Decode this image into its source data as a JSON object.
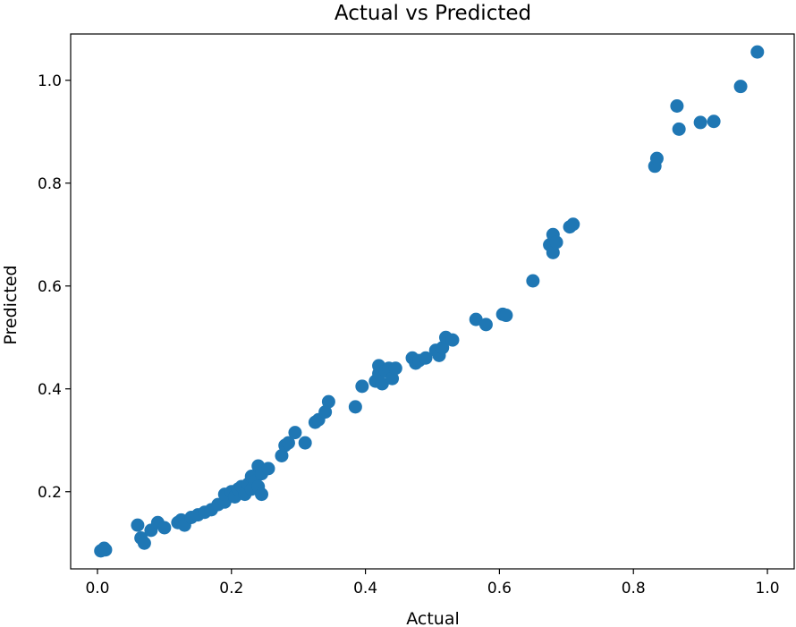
{
  "chart_data": {
    "type": "scatter",
    "title": "Actual vs Predicted",
    "xlabel": "Actual",
    "ylabel": "Predicted",
    "xlim": [
      -0.04,
      1.04
    ],
    "ylim": [
      0.05,
      1.09
    ],
    "x_ticks": [
      "0.0",
      "0.2",
      "0.4",
      "0.6",
      "0.8",
      "1.0"
    ],
    "y_ticks": [
      "0.2",
      "0.4",
      "0.6",
      "0.8",
      "1.0"
    ],
    "grid": false,
    "marker_color": "#1f77b4",
    "points": [
      {
        "x": 0.005,
        "y": 0.085
      },
      {
        "x": 0.01,
        "y": 0.09
      },
      {
        "x": 0.012,
        "y": 0.087
      },
      {
        "x": 0.06,
        "y": 0.135
      },
      {
        "x": 0.065,
        "y": 0.11
      },
      {
        "x": 0.07,
        "y": 0.1
      },
      {
        "x": 0.08,
        "y": 0.125
      },
      {
        "x": 0.09,
        "y": 0.14
      },
      {
        "x": 0.1,
        "y": 0.13
      },
      {
        "x": 0.12,
        "y": 0.14
      },
      {
        "x": 0.125,
        "y": 0.145
      },
      {
        "x": 0.13,
        "y": 0.135
      },
      {
        "x": 0.14,
        "y": 0.15
      },
      {
        "x": 0.15,
        "y": 0.155
      },
      {
        "x": 0.16,
        "y": 0.16
      },
      {
        "x": 0.17,
        "y": 0.165
      },
      {
        "x": 0.18,
        "y": 0.175
      },
      {
        "x": 0.19,
        "y": 0.18
      },
      {
        "x": 0.19,
        "y": 0.195
      },
      {
        "x": 0.2,
        "y": 0.2
      },
      {
        "x": 0.205,
        "y": 0.19
      },
      {
        "x": 0.21,
        "y": 0.205
      },
      {
        "x": 0.215,
        "y": 0.21
      },
      {
        "x": 0.22,
        "y": 0.195
      },
      {
        "x": 0.225,
        "y": 0.215
      },
      {
        "x": 0.23,
        "y": 0.23
      },
      {
        "x": 0.23,
        "y": 0.205
      },
      {
        "x": 0.235,
        "y": 0.22
      },
      {
        "x": 0.24,
        "y": 0.25
      },
      {
        "x": 0.24,
        "y": 0.21
      },
      {
        "x": 0.245,
        "y": 0.235
      },
      {
        "x": 0.245,
        "y": 0.195
      },
      {
        "x": 0.255,
        "y": 0.245
      },
      {
        "x": 0.275,
        "y": 0.27
      },
      {
        "x": 0.28,
        "y": 0.29
      },
      {
        "x": 0.285,
        "y": 0.295
      },
      {
        "x": 0.295,
        "y": 0.315
      },
      {
        "x": 0.31,
        "y": 0.295
      },
      {
        "x": 0.325,
        "y": 0.335
      },
      {
        "x": 0.33,
        "y": 0.34
      },
      {
        "x": 0.34,
        "y": 0.355
      },
      {
        "x": 0.345,
        "y": 0.375
      },
      {
        "x": 0.385,
        "y": 0.365
      },
      {
        "x": 0.395,
        "y": 0.405
      },
      {
        "x": 0.415,
        "y": 0.415
      },
      {
        "x": 0.42,
        "y": 0.43
      },
      {
        "x": 0.42,
        "y": 0.445
      },
      {
        "x": 0.425,
        "y": 0.41
      },
      {
        "x": 0.43,
        "y": 0.435
      },
      {
        "x": 0.435,
        "y": 0.44
      },
      {
        "x": 0.44,
        "y": 0.42
      },
      {
        "x": 0.445,
        "y": 0.44
      },
      {
        "x": 0.47,
        "y": 0.46
      },
      {
        "x": 0.475,
        "y": 0.45
      },
      {
        "x": 0.48,
        "y": 0.455
      },
      {
        "x": 0.49,
        "y": 0.46
      },
      {
        "x": 0.505,
        "y": 0.475
      },
      {
        "x": 0.51,
        "y": 0.465
      },
      {
        "x": 0.515,
        "y": 0.48
      },
      {
        "x": 0.52,
        "y": 0.5
      },
      {
        "x": 0.53,
        "y": 0.495
      },
      {
        "x": 0.565,
        "y": 0.535
      },
      {
        "x": 0.58,
        "y": 0.525
      },
      {
        "x": 0.605,
        "y": 0.545
      },
      {
        "x": 0.61,
        "y": 0.543
      },
      {
        "x": 0.65,
        "y": 0.61
      },
      {
        "x": 0.675,
        "y": 0.68
      },
      {
        "x": 0.68,
        "y": 0.7
      },
      {
        "x": 0.68,
        "y": 0.665
      },
      {
        "x": 0.685,
        "y": 0.685
      },
      {
        "x": 0.705,
        "y": 0.715
      },
      {
        "x": 0.71,
        "y": 0.72
      },
      {
        "x": 0.832,
        "y": 0.833
      },
      {
        "x": 0.835,
        "y": 0.848
      },
      {
        "x": 0.865,
        "y": 0.95
      },
      {
        "x": 0.868,
        "y": 0.905
      },
      {
        "x": 0.9,
        "y": 0.918
      },
      {
        "x": 0.92,
        "y": 0.92
      },
      {
        "x": 0.96,
        "y": 0.988
      },
      {
        "x": 0.985,
        "y": 1.055
      }
    ]
  }
}
